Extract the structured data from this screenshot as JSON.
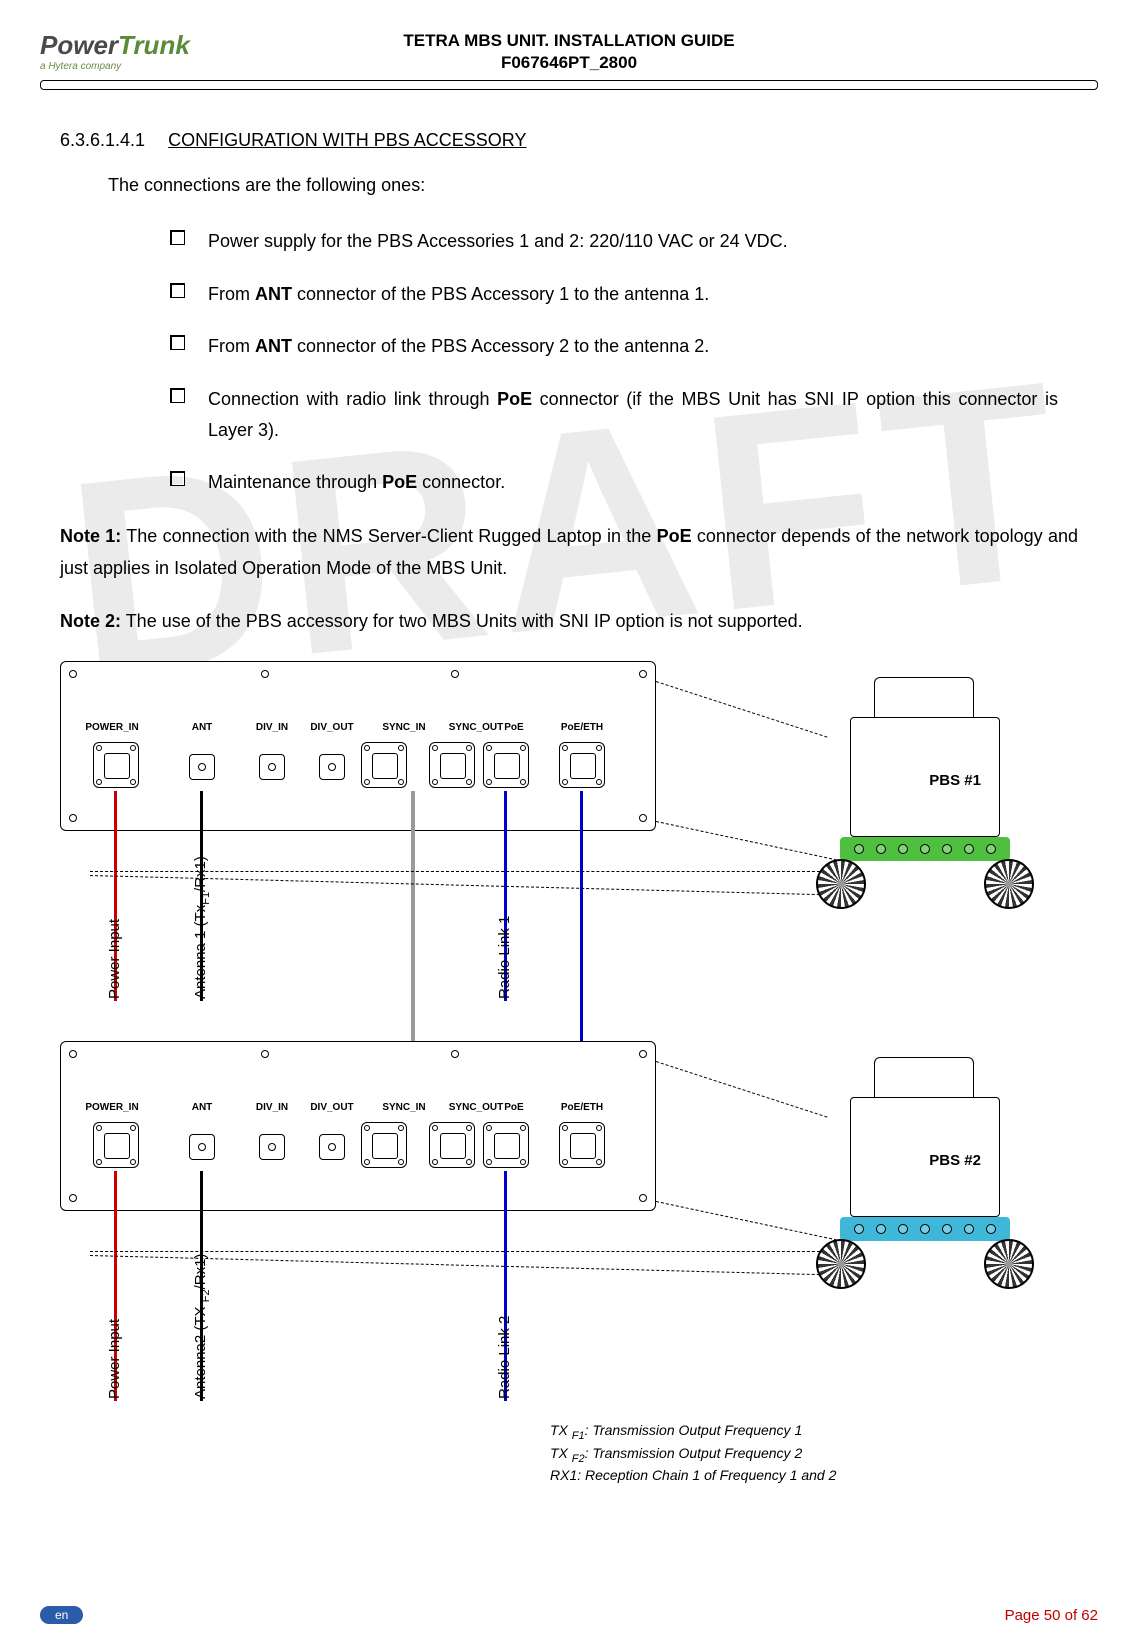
{
  "header": {
    "logo_main_a": "Power",
    "logo_main_b": "Trunk",
    "logo_sub": "a Hytera company",
    "title_line1": "TETRA MBS UNIT. INSTALLATION GUIDE",
    "title_line2": "F067646PT_2800"
  },
  "watermark": "DRAFT",
  "section": {
    "number": "6.3.6.1.4.1",
    "title": "CONFIGURATION WITH PBS ACCESSORY"
  },
  "intro": "The connections are the following ones:",
  "bullets": [
    {
      "text_pre": "Power supply for the PBS Accessories 1 and 2: 220/110 VAC or 24 VDC."
    },
    {
      "text_pre": "From ",
      "bold": "ANT",
      "text_post": " connector of the PBS Accessory 1 to the antenna 1."
    },
    {
      "text_pre": "From ",
      "bold": "ANT",
      "text_post": " connector of the PBS Accessory 2 to the antenna 2."
    },
    {
      "text_pre": "Connection with radio link through ",
      "bold": "PoE",
      "text_post": " connector (if the MBS Unit has SNI IP option this connector is Layer 3)."
    },
    {
      "text_pre": "Maintenance through ",
      "bold": "PoE",
      "text_post": " connector."
    }
  ],
  "note1": {
    "label": "Note 1:",
    "text_pre": " The connection with the NMS Server-Client Rugged Laptop in the ",
    "bold": "PoE",
    "text_post": " connector depends of the network topology and just applies in Isolated Operation Mode of the MBS Unit."
  },
  "note2": {
    "label": "Note 2:",
    "text": " The use of the PBS accessory for two MBS Units with SNI IP option is not supported."
  },
  "diagram": {
    "panel_port_labels": [
      "POWER_IN",
      "ANT",
      "DIV_IN",
      "DIV_OUT",
      "SYNC_IN",
      "SYNC_OUT",
      "PoE",
      "PoE/ETH"
    ],
    "cable_colors": {
      "power": "#cc0000",
      "antenna": "#000000",
      "sync": "#9a9a9a",
      "poe": "#0000cc"
    },
    "cable_labels_top": {
      "power": "Power Input",
      "antenna": "Antenna 1 (Tx",
      "antenna_sub": "F1",
      "antenna_post": "/Rx1)",
      "radio": "Radio Link 1"
    },
    "cable_labels_bottom": {
      "power": "Power Input",
      "antenna": "Antenna2 (TX ",
      "antenna_sub": "F2",
      "antenna_post": "/Rx1)",
      "radio": "Radio Link 2"
    },
    "pbs_tags": {
      "1": "PBS #1",
      "2": "PBS #2"
    },
    "pbs_base_colors": {
      "1": "#4fbf3f",
      "2": "#3fb7d9"
    },
    "legend": {
      "l1a": "TX ",
      "l1s": "F1",
      "l1b": ": Transmission Output Frequency 1",
      "l2a": "TX ",
      "l2s": "F2",
      "l2b": ": Transmission Output  Frequency 2",
      "l3": "RX1: Reception Chain 1 of Frequency 1 and 2"
    }
  },
  "footer": {
    "lang": "en",
    "page": "Page 50 of 62"
  },
  "colors": {
    "watermark": "#d9d9d9",
    "page_num": "#c00000",
    "lang_pill": "#2a5caa"
  }
}
